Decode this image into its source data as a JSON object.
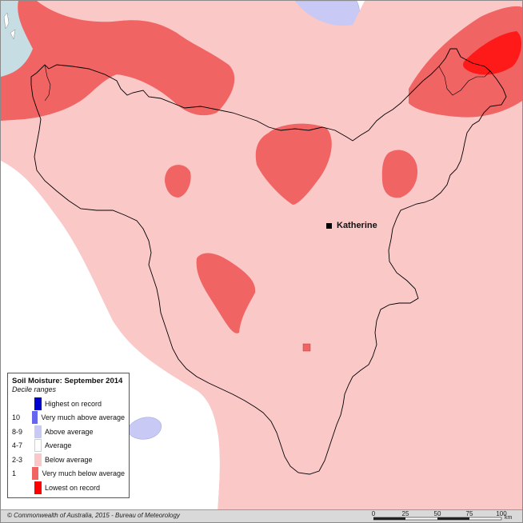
{
  "legend": {
    "title": "Soil Moisture:  September 2014",
    "subtitle": "Decile ranges",
    "items": [
      {
        "code": "",
        "label": "Highest on record",
        "color": "#0000cc"
      },
      {
        "code": "10",
        "label": "Very much above average",
        "color": "#6666ee"
      },
      {
        "code": "8-9",
        "label": "Above average",
        "color": "#c9c9f5"
      },
      {
        "code": "4-7",
        "label": "Average",
        "color": "#ffffff"
      },
      {
        "code": "2-3",
        "label": "Below average",
        "color": "#fbc8c8"
      },
      {
        "code": "1",
        "label": "Very much below average",
        "color": "#f06464"
      },
      {
        "code": "",
        "label": "Lowest on record",
        "color": "#ff0000"
      }
    ]
  },
  "map": {
    "town": "Katherine",
    "colors": {
      "below_average": "#fbc8c8",
      "very_much_below": "#f06464",
      "lowest_on_record": "#ff1a1a",
      "above_average": "#c9c9f5",
      "sea": "#c5dde3",
      "boundary": "#000000"
    }
  },
  "footer": {
    "copyright": "© Commonwealth of Australia, 2015 - Bureau of Meteorology",
    "scale_ticks": [
      "0",
      "25",
      "50",
      "75",
      "100"
    ],
    "scale_unit": "km"
  }
}
